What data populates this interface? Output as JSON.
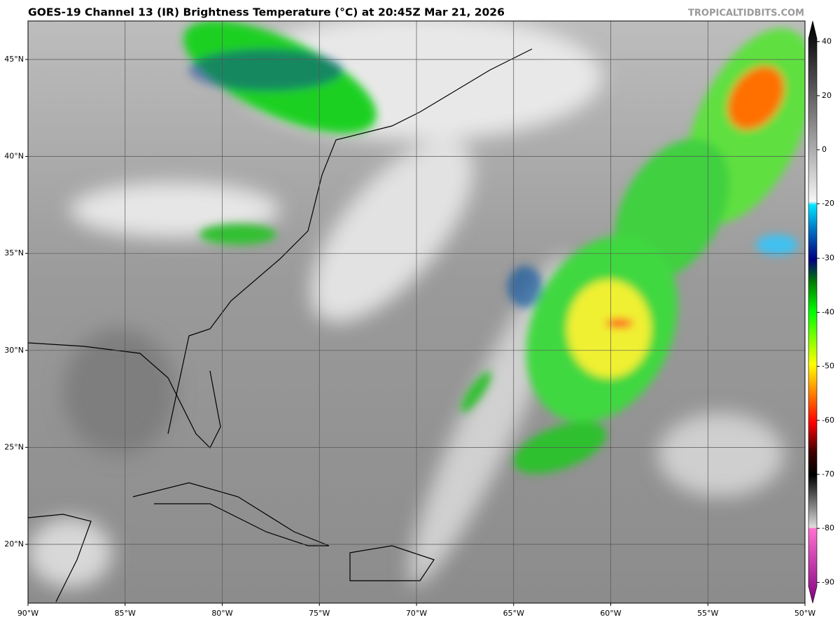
{
  "title": "GOES-19 Channel 13 (IR) Brightness Temperature (°C) at 20:45Z Mar 21, 2026",
  "credit": "TROPICALTIDBITS.COM",
  "map": {
    "longitudes": [
      "90°W",
      "85°W",
      "80°W",
      "75°W",
      "70°W",
      "65°W",
      "60°W",
      "55°W",
      "50°W"
    ],
    "latitudes": [
      "45°N",
      "40°N",
      "35°N",
      "30°N",
      "25°N",
      "20°N"
    ]
  },
  "colorbar": {
    "ticks": [
      40,
      20,
      0,
      -20,
      -30,
      -40,
      -50,
      -60,
      -70,
      -80,
      -90
    ]
  }
}
